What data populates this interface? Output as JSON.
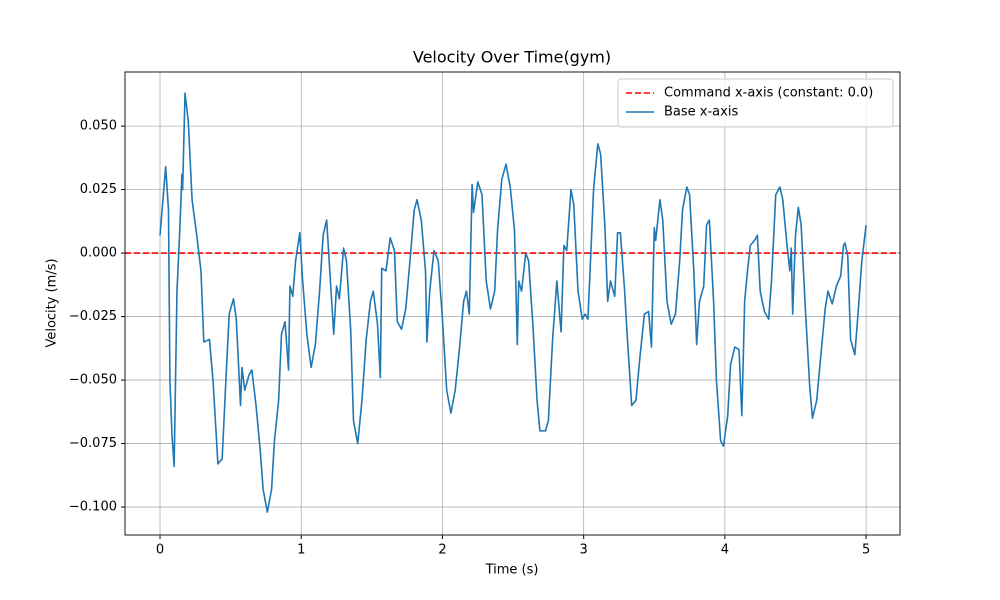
{
  "chart_data": {
    "type": "line",
    "title": "Velocity Over Time(gym)",
    "xlabel": "Time (s)",
    "ylabel": "Velocity (m/s)",
    "xlim": [
      -0.248,
      5.24
    ],
    "ylim": [
      -0.111,
      0.0713
    ],
    "xticks": [
      0,
      1,
      2,
      3,
      4,
      5
    ],
    "yticks": [
      {
        "value": -0.1,
        "label": "−0.100"
      },
      {
        "value": -0.075,
        "label": "−0.075"
      },
      {
        "value": -0.05,
        "label": "−0.050"
      },
      {
        "value": -0.025,
        "label": "−0.025"
      },
      {
        "value": 0,
        "label": "0.000"
      },
      {
        "value": 0.025,
        "label": "0.025"
      },
      {
        "value": 0.05,
        "label": "0.050"
      }
    ],
    "grid": true,
    "legend": "upper right",
    "hlines": [
      {
        "name": "Command x-axis (constant: 0.0)",
        "color": "#ff0000",
        "value": 0,
        "dashed": true
      }
    ],
    "x": [
      0,
      0.04,
      0.06,
      0.07,
      0.085,
      0.1,
      0.12,
      0.14,
      0.155,
      0.16,
      0.177,
      0.2,
      0.227,
      0.26,
      0.29,
      0.31,
      0.35,
      0.375,
      0.41,
      0.44,
      0.47,
      0.49,
      0.52,
      0.54,
      0.57,
      0.58,
      0.6,
      0.63,
      0.65,
      0.68,
      0.71,
      0.73,
      0.76,
      0.79,
      0.81,
      0.84,
      0.86,
      0.885,
      0.91,
      0.92,
      0.94,
      0.96,
      0.99,
      1.01,
      1.04,
      1.07,
      1.1,
      1.13,
      1.155,
      1.18,
      1.2,
      1.23,
      1.25,
      1.27,
      1.3,
      1.32,
      1.35,
      1.37,
      1.4,
      1.43,
      1.46,
      1.49,
      1.51,
      1.54,
      1.56,
      1.57,
      1.6,
      1.63,
      1.66,
      1.68,
      1.71,
      1.74,
      1.77,
      1.8,
      1.82,
      1.85,
      1.88,
      1.89,
      1.91,
      1.94,
      1.97,
      2.0,
      2.03,
      2.06,
      2.09,
      2.12,
      2.15,
      2.17,
      2.19,
      2.21,
      2.22,
      2.25,
      2.28,
      2.31,
      2.34,
      2.37,
      2.39,
      2.42,
      2.45,
      2.48,
      2.51,
      2.53,
      2.54,
      2.56,
      2.59,
      2.61,
      2.64,
      2.67,
      2.69,
      2.73,
      2.75,
      2.78,
      2.81,
      2.84,
      2.86,
      2.88,
      2.91,
      2.93,
      2.96,
      2.99,
      3.01,
      3.03,
      3.05,
      3.07,
      3.1,
      3.12,
      3.15,
      3.17,
      3.19,
      3.22,
      3.24,
      3.26,
      3.29,
      3.31,
      3.34,
      3.37,
      3.4,
      3.43,
      3.46,
      3.48,
      3.5,
      3.51,
      3.54,
      3.56,
      3.59,
      3.62,
      3.65,
      3.68,
      3.7,
      3.73,
      3.75,
      3.78,
      3.8,
      3.82,
      3.85,
      3.87,
      3.89,
      3.92,
      3.94,
      3.97,
      3.99,
      4.02,
      4.04,
      4.07,
      4.1,
      4.12,
      4.14,
      4.16,
      4.18,
      4.21,
      4.23,
      4.25,
      4.28,
      4.31,
      4.33,
      4.36,
      4.39,
      4.41,
      4.44,
      4.46,
      4.47,
      4.48,
      4.5,
      4.52,
      4.54,
      4.57,
      4.6,
      4.62,
      4.65,
      4.68,
      4.71,
      4.73,
      4.76,
      4.79,
      4.82,
      4.84,
      4.85,
      4.87,
      4.89,
      4.92,
      4.94,
      4.97,
      5.0
    ],
    "series": [
      {
        "name": "Base x-axis",
        "color": "#1f77b4",
        "values": [
          0.007,
          0.034,
          0.017,
          -0.05,
          -0.072,
          -0.084,
          -0.015,
          0.009,
          0.031,
          0.025,
          0.063,
          0.052,
          0.021,
          0.007,
          -0.007,
          -0.035,
          -0.034,
          -0.05,
          -0.083,
          -0.081,
          -0.046,
          -0.024,
          -0.018,
          -0.026,
          -0.06,
          -0.045,
          -0.054,
          -0.048,
          -0.046,
          -0.06,
          -0.078,
          -0.093,
          -0.102,
          -0.093,
          -0.074,
          -0.058,
          -0.032,
          -0.027,
          -0.046,
          -0.013,
          -0.017,
          -0.003,
          0.008,
          -0.011,
          -0.032,
          -0.045,
          -0.036,
          -0.015,
          0.007,
          0.013,
          -0.005,
          -0.032,
          -0.013,
          -0.018,
          0.002,
          -0.003,
          -0.03,
          -0.066,
          -0.075,
          -0.058,
          -0.034,
          -0.019,
          -0.015,
          -0.028,
          -0.049,
          -0.006,
          -0.007,
          0.006,
          0.001,
          -0.027,
          -0.03,
          -0.022,
          -0.003,
          0.017,
          0.021,
          0.013,
          -0.007,
          -0.035,
          -0.015,
          0.001,
          -0.003,
          -0.026,
          -0.054,
          -0.063,
          -0.054,
          -0.038,
          -0.019,
          -0.015,
          -0.024,
          0.027,
          0.016,
          0.028,
          0.023,
          -0.011,
          -0.022,
          -0.015,
          0.009,
          0.029,
          0.035,
          0.026,
          0.009,
          -0.036,
          -0.011,
          -0.015,
          0.0,
          -0.003,
          -0.028,
          -0.058,
          -0.07,
          -0.07,
          -0.066,
          -0.034,
          -0.011,
          -0.031,
          0.003,
          0.001,
          0.025,
          0.019,
          -0.015,
          -0.026,
          -0.024,
          -0.026,
          -0.001,
          0.025,
          0.043,
          0.039,
          0.011,
          -0.019,
          -0.011,
          -0.017,
          0.008,
          0.008,
          -0.015,
          -0.034,
          -0.06,
          -0.058,
          -0.04,
          -0.024,
          -0.023,
          -0.037,
          0.01,
          0.005,
          0.021,
          0.013,
          -0.019,
          -0.028,
          -0.024,
          -0.003,
          0.017,
          0.026,
          0.023,
          -0.007,
          -0.036,
          -0.019,
          -0.013,
          0.011,
          0.013,
          -0.019,
          -0.05,
          -0.074,
          -0.076,
          -0.064,
          -0.044,
          -0.037,
          -0.038,
          -0.064,
          -0.019,
          -0.007,
          0.003,
          0.005,
          0.007,
          -0.015,
          -0.023,
          -0.026,
          -0.011,
          0.023,
          0.026,
          0.021,
          0.003,
          -0.007,
          0.002,
          -0.024,
          0.007,
          0.018,
          0.011,
          -0.022,
          -0.052,
          -0.065,
          -0.058,
          -0.04,
          -0.022,
          -0.015,
          -0.02,
          -0.013,
          -0.009,
          0.003,
          0.004,
          -0.001,
          -0.034,
          -0.04,
          -0.026,
          -0.003,
          0.011
        ]
      }
    ]
  }
}
